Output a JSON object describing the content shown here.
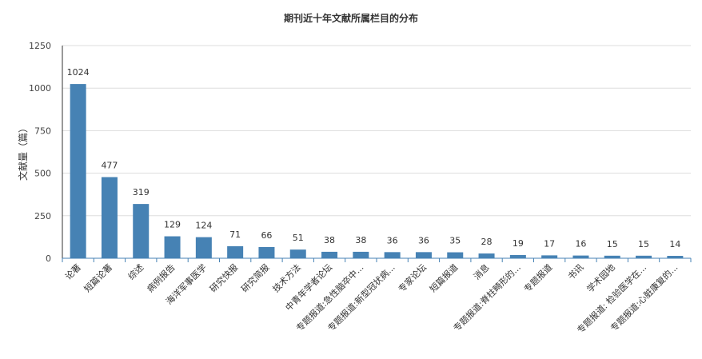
{
  "chart_data": {
    "type": "bar",
    "title": "期刊近十年文献所属栏目的分布",
    "xlabel": "",
    "ylabel": "文献量（篇）",
    "ylim": [
      0,
      1250
    ],
    "yticks": [
      0,
      250,
      500,
      750,
      1000,
      1250
    ],
    "grid": true,
    "legend": "none",
    "bar_color": "#4682b4",
    "categories": [
      "论著",
      "短篇论著",
      "综述",
      "病例报告",
      "海洋军事医学",
      "研究快报",
      "研究简报",
      "技术方法",
      "中青年学者论坛",
      "专题报道:急性脑卒中...",
      "专题报道:新型冠状病...",
      "专家论坛",
      "短篇报道",
      "消息",
      "专题报道:脊柱畸形的...",
      "专题报道",
      "书讯",
      "学术园地",
      "专题报道: 检验医学在...",
      "专题报道:心脏康复的..."
    ],
    "values": [
      1024,
      477,
      319,
      129,
      124,
      71,
      66,
      51,
      38,
      38,
      36,
      36,
      35,
      28,
      19,
      17,
      16,
      15,
      15,
      14
    ]
  }
}
